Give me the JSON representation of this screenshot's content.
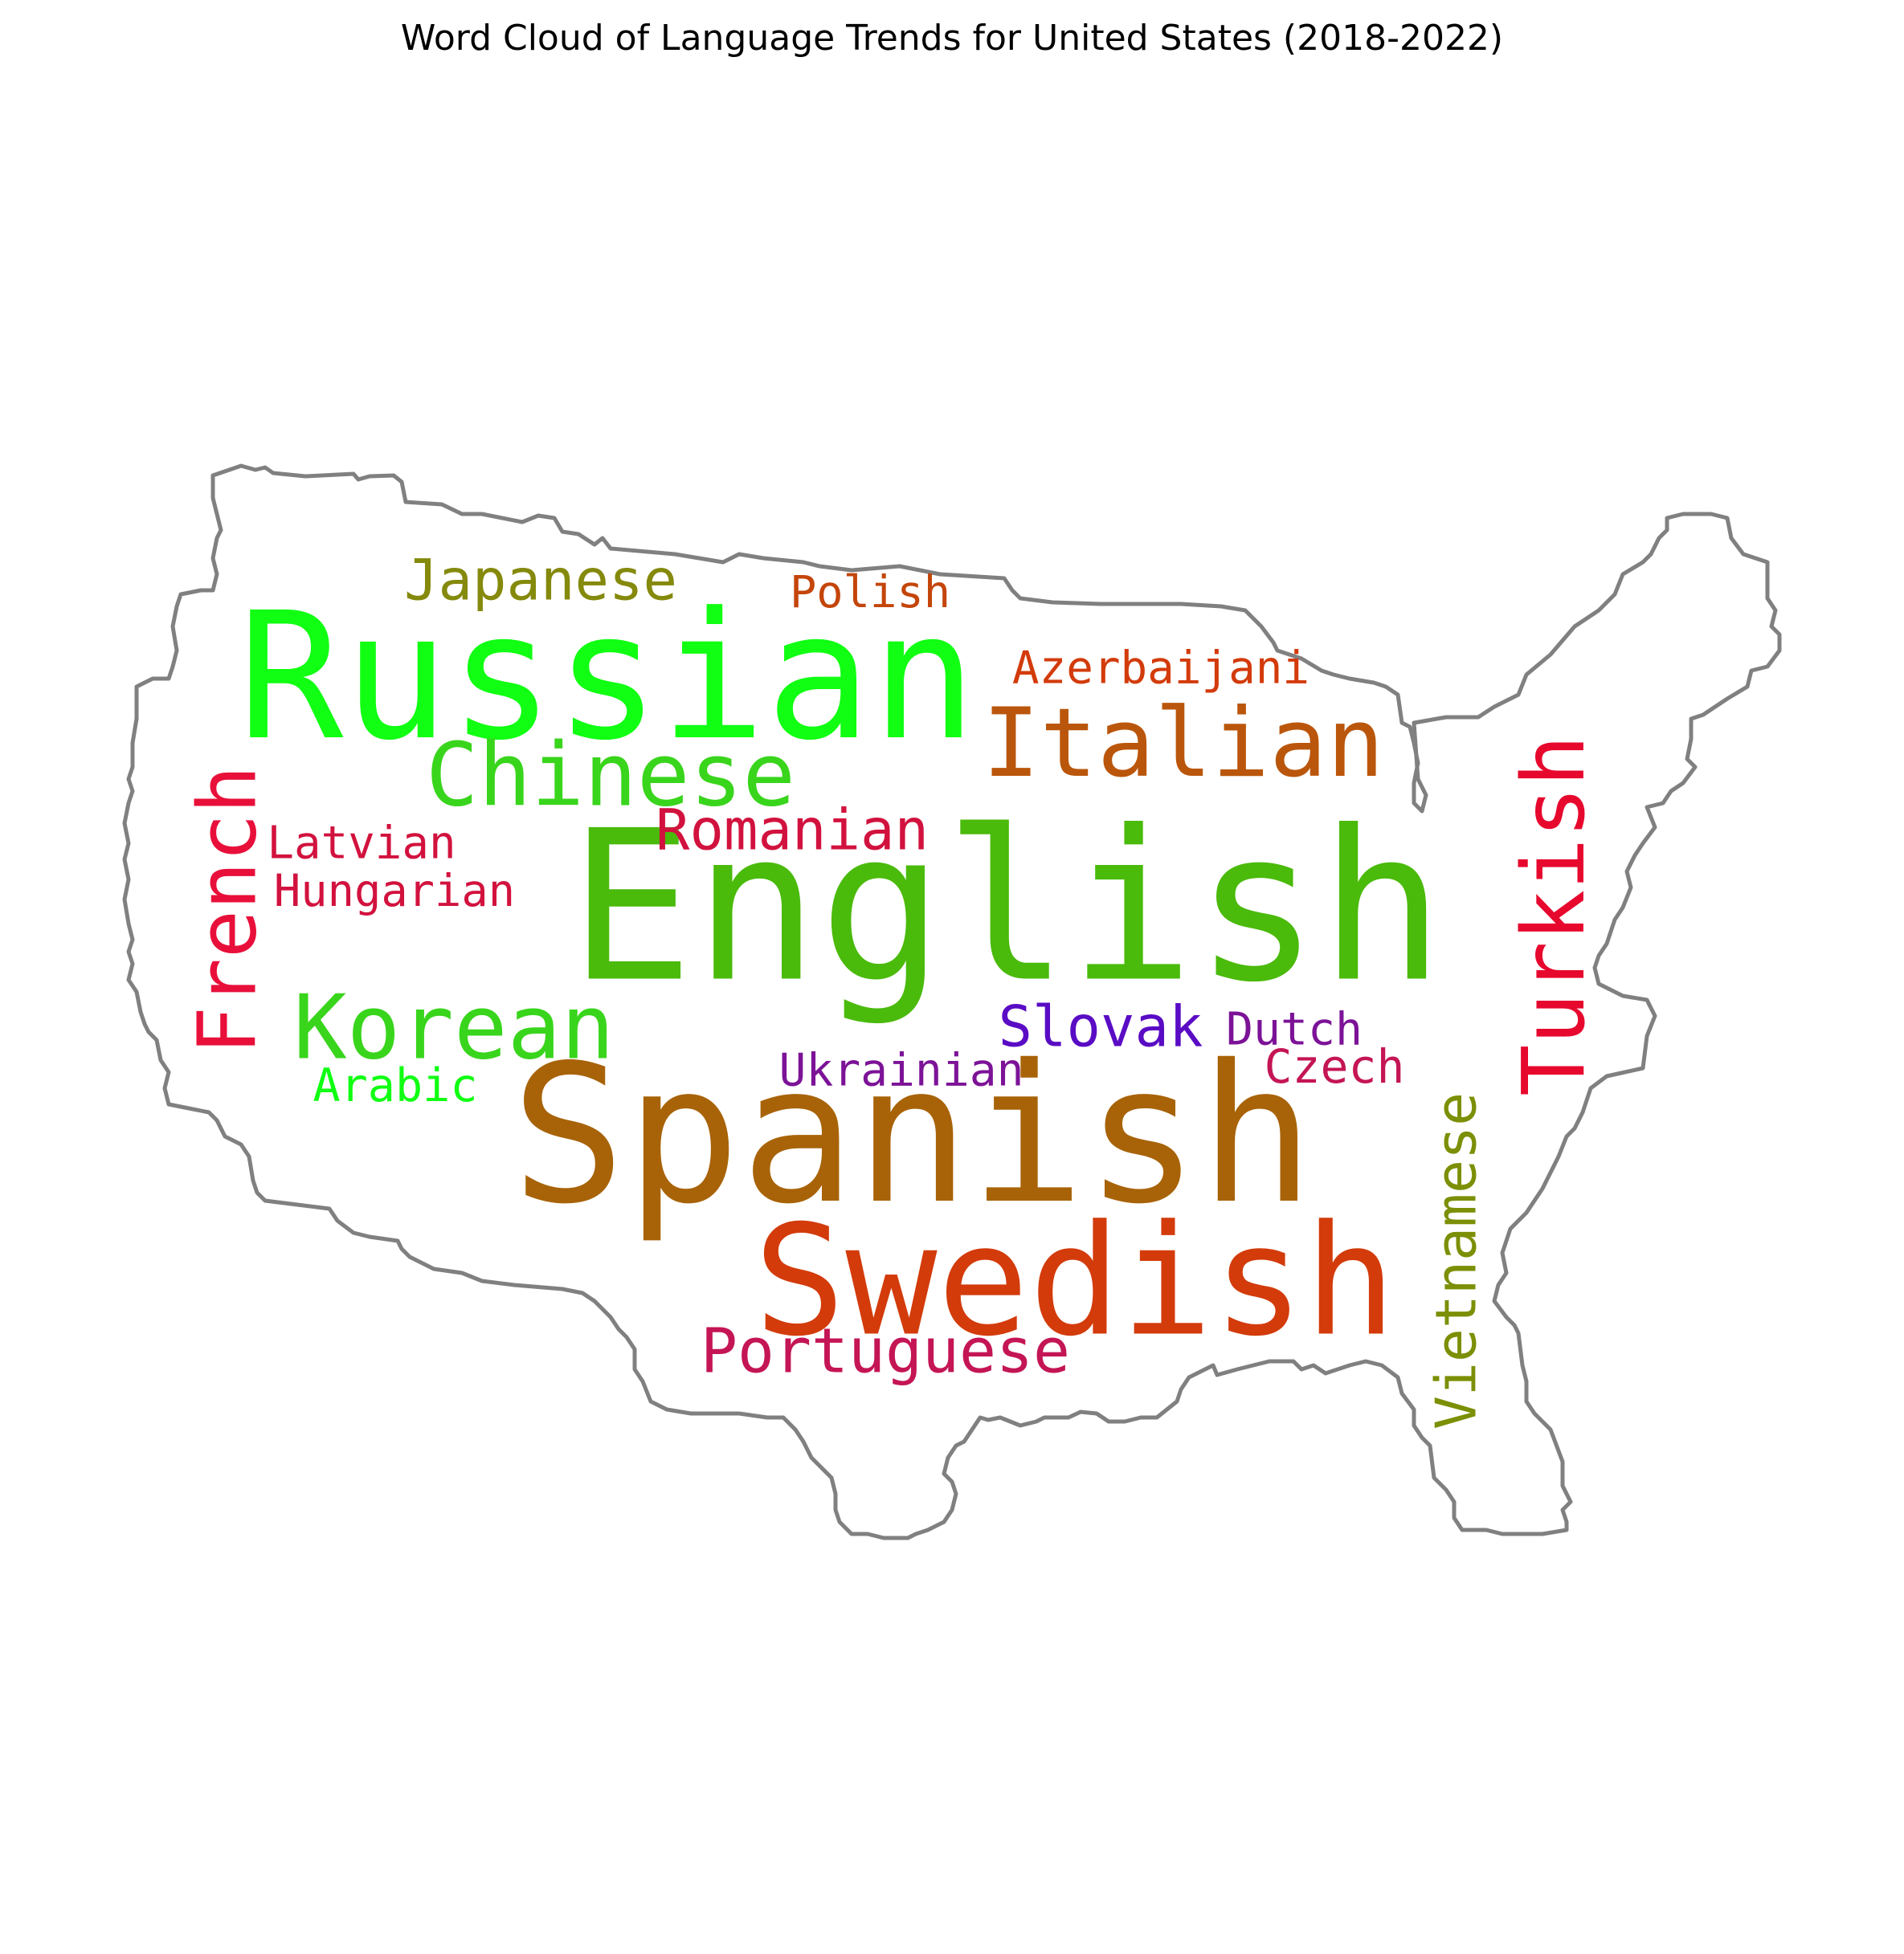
{
  "chart_data": {
    "type": "wordcloud",
    "title": "Word Cloud of Language Trends for United States (2018-2022)",
    "mask_shape": "United States outline",
    "outline_color": "#808080",
    "words": [
      {
        "text": "English",
        "color": "#4aba0b",
        "orientation": "horizontal"
      },
      {
        "text": "Spanish",
        "color": "#a86308",
        "orientation": "horizontal"
      },
      {
        "text": "Russian",
        "color": "#10ff12",
        "orientation": "horizontal"
      },
      {
        "text": "Swedish",
        "color": "#d33b0b",
        "orientation": "horizontal"
      },
      {
        "text": "Turkish",
        "color": "#e7082e",
        "orientation": "vertical"
      },
      {
        "text": "Italian",
        "color": "#ba560b",
        "orientation": "horizontal"
      },
      {
        "text": "Korean",
        "color": "#39d51c",
        "orientation": "horizontal"
      },
      {
        "text": "French",
        "color": "#e8103a",
        "orientation": "vertical"
      },
      {
        "text": "Chinese",
        "color": "#39d51c",
        "orientation": "horizontal"
      },
      {
        "text": "Portuguese",
        "color": "#c41555",
        "orientation": "horizontal"
      },
      {
        "text": "Vietnamese",
        "color": "#7c8f05",
        "orientation": "vertical"
      },
      {
        "text": "Japanese",
        "color": "#85890c",
        "orientation": "horizontal"
      },
      {
        "text": "Romanian",
        "color": "#d2123e",
        "orientation": "horizontal"
      },
      {
        "text": "Slovak",
        "color": "#5a0cc4",
        "orientation": "horizontal"
      },
      {
        "text": "Latvian",
        "color": "#d2123e",
        "orientation": "horizontal"
      },
      {
        "text": "Hungarian",
        "color": "#d2123e",
        "orientation": "horizontal"
      },
      {
        "text": "Polish",
        "color": "#c4450a",
        "orientation": "horizontal"
      },
      {
        "text": "Azerbaijani",
        "color": "#d33b0b",
        "orientation": "horizontal"
      },
      {
        "text": "Dutch",
        "color": "#7c1397",
        "orientation": "horizontal"
      },
      {
        "text": "Czech",
        "color": "#c41555",
        "orientation": "horizontal"
      },
      {
        "text": "Ukrainian",
        "color": "#7c1397",
        "orientation": "horizontal"
      },
      {
        "text": "Arabic",
        "color": "#10ff12",
        "orientation": "horizontal"
      }
    ]
  }
}
